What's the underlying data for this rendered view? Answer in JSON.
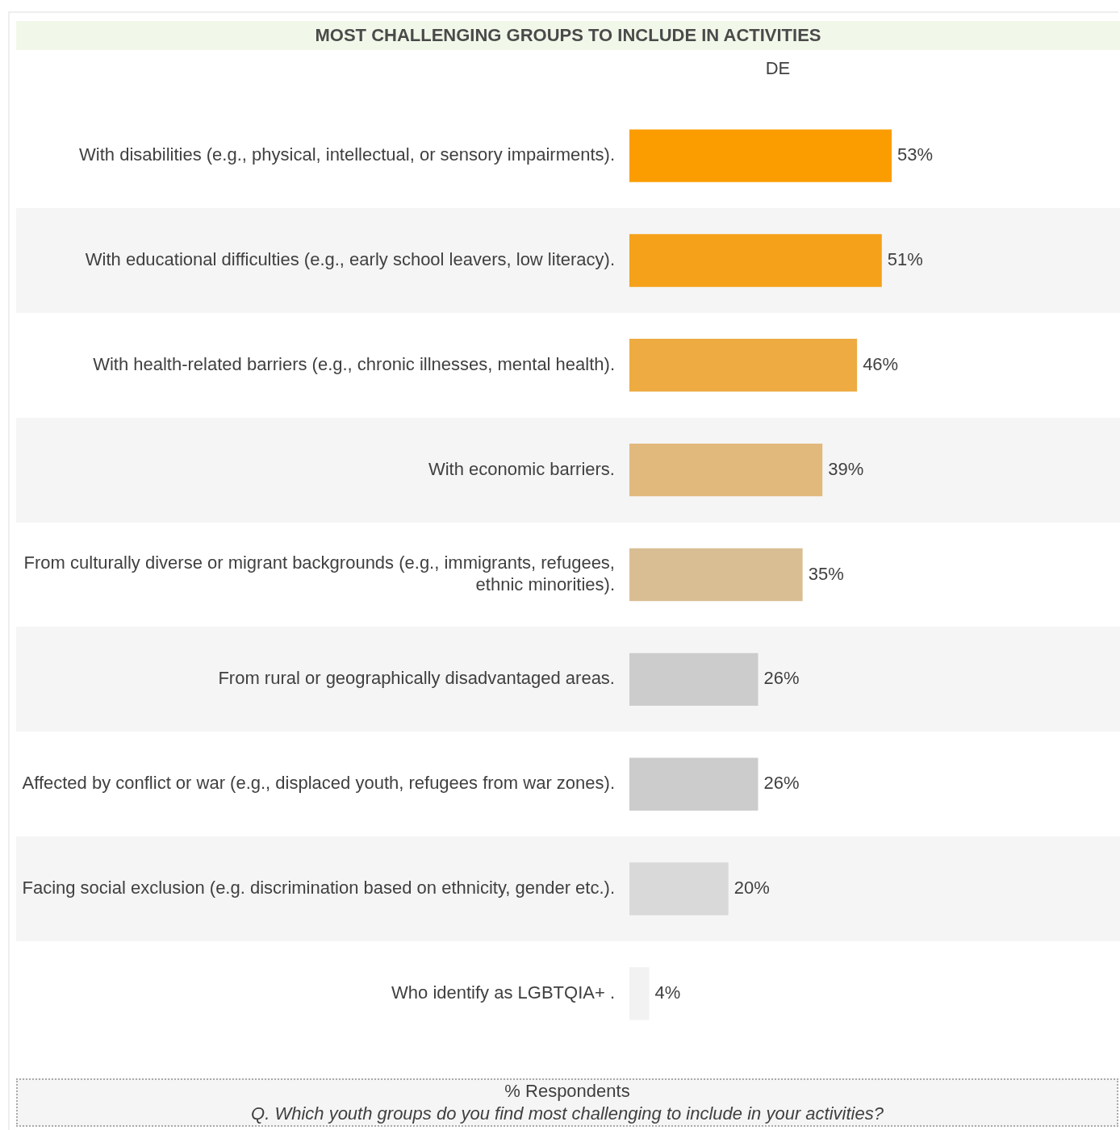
{
  "chart_data": {
    "type": "bar",
    "orientation": "horizontal",
    "title": "MOST CHALLENGING GROUPS TO INCLUDE IN ACTIVITIES",
    "xlabel": "% Respondents",
    "annotations": [
      "Q. Which youth groups do you find most challenging to include in your activities?"
    ],
    "categories": [
      "With disabilities (e.g., physical, intellectual, or sensory impairments).",
      "With educational difficulties (e.g., early school leavers, low literacy).",
      "With health-related barriers (e.g., chronic illnesses, mental health).",
      "With economic barriers.",
      "From culturally diverse or migrant backgrounds (e.g., immigrants, refugees, ethnic minorities).",
      "From rural or geographically disadvantaged areas.",
      "Affected by conflict or war (e.g., displaced youth, refugees from war zones).",
      "Facing social exclusion (e.g. discrimination based on ethnicity, gender etc.).",
      "Who identify as LGBTQIA+ ."
    ],
    "series": [
      {
        "name": "DE",
        "values": [
          53,
          51,
          46,
          39,
          35,
          26,
          26,
          20,
          4
        ],
        "value_labels": [
          "53%",
          "51%",
          "46%",
          "39%",
          "35%",
          "26%",
          "26%",
          "20%",
          "4%"
        ],
        "colors": [
          "#fb9d00",
          "#f5a11a",
          "#edab42",
          "#e2b97c",
          "#d9be94",
          "#cccccc",
          "#cccccc",
          "#d9d9d9",
          "#f2f2f2"
        ]
      }
    ],
    "tick_labels": "y",
    "grid": false,
    "legend": false
  }
}
